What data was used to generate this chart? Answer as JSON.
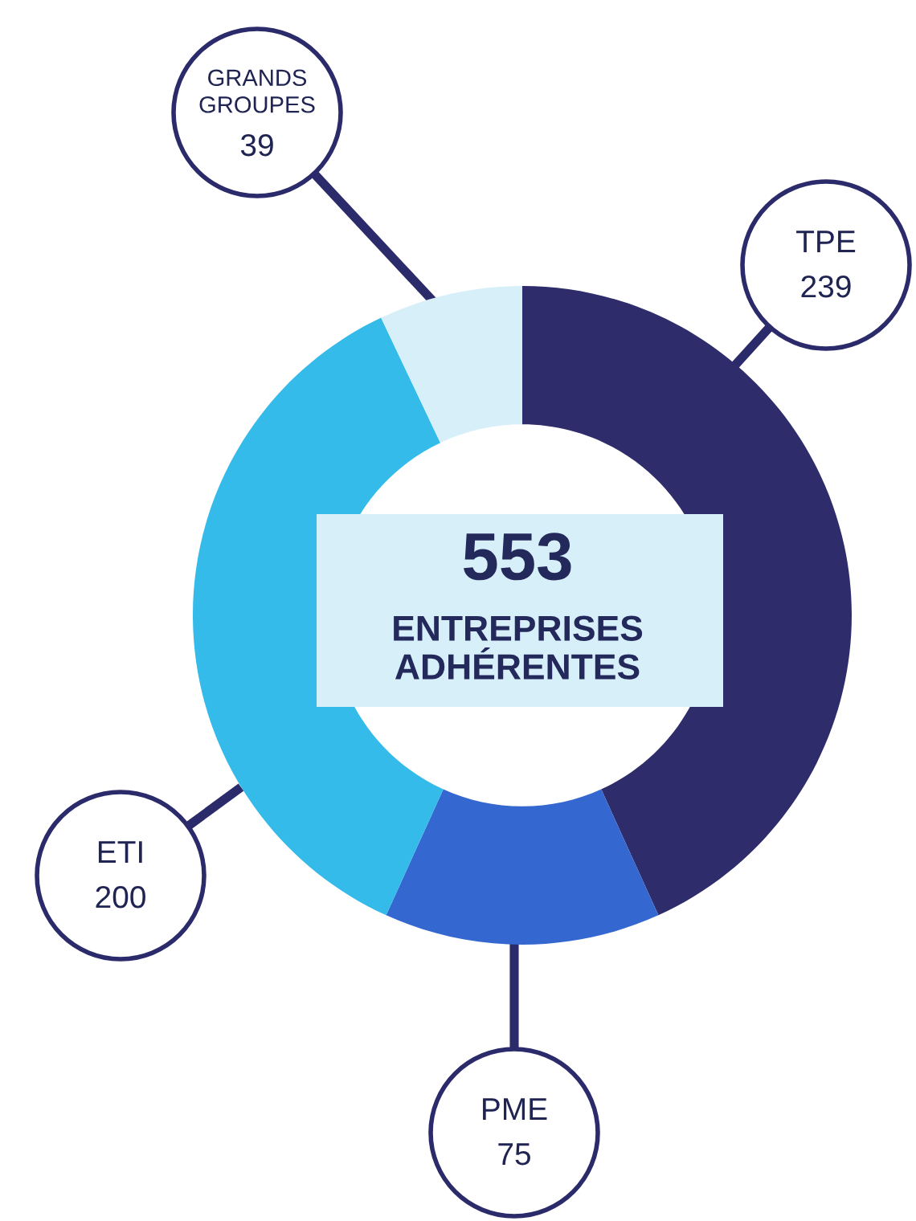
{
  "chart_data": {
    "type": "donut",
    "title": "553",
    "subtitle": "ENTREPRISES ADHÉRENTES",
    "categories": [
      "TPE",
      "PME",
      "ETI",
      "GRANDS GROUPES"
    ],
    "values": [
      239,
      75,
      200,
      39
    ],
    "colors": [
      "#2e2c6b",
      "#3468d0",
      "#34bbea",
      "#d6eff9"
    ],
    "data_labels": true
  }
}
